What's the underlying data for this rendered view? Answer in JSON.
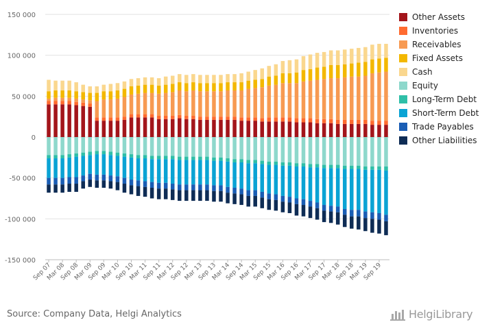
{
  "chart_data": {
    "type": "bar",
    "stacked": true,
    "ylim": [
      -150000,
      150000
    ],
    "yticks": [
      150000,
      100000,
      50000,
      0,
      -50000,
      -100000,
      -150000
    ],
    "ytick_labels": [
      "150 000",
      "100 000",
      "50 000",
      "0",
      "-50 000",
      "-100 000",
      "-150 000"
    ],
    "grid": true,
    "legend_position": "right",
    "categories": [
      "Sep 07",
      "Dec 07",
      "Mar 08",
      "Jun 08",
      "Sep 08",
      "Dec 08",
      "Mar 09",
      "Jun 09",
      "Sep 09",
      "Dec 09",
      "Mar 10",
      "Jun 10",
      "Sep 10",
      "Dec 10",
      "Mar 11",
      "Jun 11",
      "Sep 11",
      "Dec 11",
      "Mar 12",
      "Jun 12",
      "Sep 12",
      "Dec 12",
      "Mar 13",
      "Jun 13",
      "Sep 13",
      "Dec 13",
      "Mar 14",
      "Jun 14",
      "Sep 14",
      "Dec 14",
      "Mar 15",
      "Jun 15",
      "Sep 15",
      "Dec 15",
      "Mar 16",
      "Jun 16",
      "Sep 16",
      "Dec 16",
      "Mar 17",
      "Jun 17",
      "Sep 17",
      "Dec 17",
      "Mar 18",
      "Jun 18",
      "Sep 18",
      "Dec 18",
      "Mar 19",
      "Jun 19",
      "Sep 19",
      "Dec 19"
    ],
    "x_tick_labels": [
      "Sep 07",
      "Mar 08",
      "Sep 08",
      "Mar 09",
      "Sep 09",
      "Mar 10",
      "Sep 10",
      "Mar 11",
      "Sep 11",
      "Mar 12",
      "Sep 12",
      "Mar 13",
      "Sep 13",
      "Mar 14",
      "Sep 14",
      "Mar 15",
      "Sep 15",
      "Mar 16",
      "Sep 16",
      "Mar 17",
      "Sep 17",
      "Mar 18",
      "Sep 18",
      "Mar 19",
      "Sep 19"
    ],
    "series": [
      {
        "name": "Other Assets",
        "color": "#a3151b",
        "group": "assets",
        "values": [
          40000,
          40000,
          40000,
          40000,
          39000,
          38000,
          37000,
          20000,
          20000,
          20000,
          20000,
          21000,
          24000,
          24000,
          24000,
          24000,
          22000,
          22000,
          22000,
          23000,
          22000,
          22000,
          21000,
          21000,
          21000,
          21000,
          21000,
          21000,
          20000,
          20000,
          20000,
          19000,
          19000,
          19000,
          19000,
          19000,
          18000,
          18000,
          18000,
          17000,
          17000,
          17000,
          16000,
          16000,
          16000,
          16000,
          16000,
          15000,
          15000,
          15000
        ]
      },
      {
        "name": "Inventories",
        "color": "#ff6b30",
        "group": "assets",
        "values": [
          4000,
          4000,
          4000,
          4000,
          4000,
          4000,
          4000,
          4000,
          4000,
          4000,
          4000,
          4000,
          4000,
          4000,
          4000,
          4000,
          4000,
          4000,
          4000,
          4000,
          4000,
          4000,
          4000,
          4000,
          4000,
          4000,
          4000,
          4000,
          4000,
          4000,
          4000,
          4000,
          5000,
          5000,
          5000,
          5000,
          5000,
          5000,
          5000,
          5000,
          5000,
          5000,
          5000,
          5000,
          5000,
          5000,
          5000,
          5000,
          5000,
          5000
        ]
      },
      {
        "name": "Receivables",
        "color": "#f79a52",
        "group": "assets",
        "values": [
          3000,
          4000,
          4000,
          4000,
          4000,
          4000,
          4000,
          20000,
          22000,
          22000,
          23000,
          24000,
          24000,
          25000,
          26000,
          26000,
          27000,
          28000,
          29000,
          30000,
          30000,
          31000,
          31000,
          31000,
          31000,
          31000,
          32000,
          32000,
          33000,
          35000,
          36000,
          38000,
          39000,
          40000,
          42000,
          42000,
          43000,
          45000,
          46000,
          48000,
          49000,
          50000,
          51000,
          52000,
          53000,
          53000,
          54000,
          58000,
          59000,
          60000
        ]
      },
      {
        "name": "Fixed Assets",
        "color": "#f3b800",
        "group": "assets",
        "values": [
          9000,
          9000,
          9000,
          9000,
          9000,
          9000,
          9000,
          10000,
          10000,
          10000,
          10000,
          10000,
          10000,
          10000,
          10000,
          10000,
          10000,
          10000,
          10000,
          10000,
          10000,
          10000,
          10000,
          10000,
          10000,
          10000,
          10000,
          10000,
          10000,
          10000,
          10000,
          10000,
          11000,
          11000,
          12000,
          12000,
          13000,
          14000,
          14000,
          15000,
          15000,
          16000,
          16000,
          16000,
          16000,
          17000,
          17000,
          17000,
          17000,
          17000
        ]
      },
      {
        "name": "Cash",
        "color": "#fad78e",
        "group": "assets",
        "values": [
          14000,
          12000,
          12000,
          12000,
          11000,
          9000,
          8000,
          8000,
          8000,
          9000,
          9000,
          9000,
          9000,
          9000,
          9000,
          9000,
          9000,
          10000,
          10000,
          10000,
          10000,
          10000,
          10000,
          10000,
          10000,
          10000,
          10000,
          10000,
          11000,
          11000,
          12000,
          13000,
          13000,
          14000,
          15000,
          16000,
          16000,
          17000,
          18000,
          18000,
          18000,
          18000,
          18000,
          18000,
          18000,
          18000,
          18000,
          18000,
          18000,
          17000
        ]
      },
      {
        "name": "Equity",
        "color": "#8ed8cc",
        "group": "liabilities",
        "values": [
          -22000,
          -22000,
          -22000,
          -21000,
          -20000,
          -19000,
          -18000,
          -17000,
          -17000,
          -18000,
          -19000,
          -20000,
          -21000,
          -22000,
          -22000,
          -23000,
          -23000,
          -23000,
          -23000,
          -24000,
          -24000,
          -24000,
          -24000,
          -24000,
          -25000,
          -25000,
          -26000,
          -27000,
          -27000,
          -28000,
          -28000,
          -29000,
          -30000,
          -30000,
          -31000,
          -31000,
          -32000,
          -32000,
          -33000,
          -33000,
          -34000,
          -34000,
          -34000,
          -35000,
          -35000,
          -35000,
          -36000,
          -36000,
          -36000,
          -36000
        ]
      },
      {
        "name": "Long-Term Debt",
        "color": "#2fbfa8",
        "group": "liabilities",
        "values": [
          -4000,
          -4000,
          -4000,
          -4000,
          -4000,
          -4000,
          -4000,
          -4000,
          -4000,
          -4000,
          -4000,
          -4000,
          -4000,
          -4000,
          -4000,
          -4000,
          -4000,
          -4000,
          -4000,
          -4000,
          -4000,
          -4000,
          -4000,
          -4000,
          -4000,
          -4000,
          -4000,
          -4000,
          -4000,
          -4000,
          -4000,
          -4000,
          -4000,
          -4000,
          -4000,
          -4000,
          -4000,
          -4000,
          -4000,
          -4000,
          -4000,
          -4000,
          -4000,
          -4000,
          -4000,
          -4000,
          -4000,
          -4000,
          -4000,
          -5000
        ]
      },
      {
        "name": "Short-Term Debt",
        "color": "#0aa3d4",
        "group": "liabilities",
        "values": [
          -24000,
          -24000,
          -24000,
          -24000,
          -25000,
          -24000,
          -23000,
          -25000,
          -25000,
          -25000,
          -25000,
          -26000,
          -27000,
          -27000,
          -28000,
          -28000,
          -29000,
          -29000,
          -30000,
          -30000,
          -30000,
          -30000,
          -30000,
          -30000,
          -30000,
          -30000,
          -31000,
          -31000,
          -32000,
          -33000,
          -33000,
          -34000,
          -35000,
          -36000,
          -37000,
          -38000,
          -39000,
          -40000,
          -41000,
          -43000,
          -45000,
          -46000,
          -47000,
          -49000,
          -50000,
          -50000,
          -51000,
          -52000,
          -53000,
          -54000
        ]
      },
      {
        "name": "Trade Payables",
        "color": "#1a5db4",
        "group": "liabilities",
        "values": [
          -8000,
          -8000,
          -8000,
          -8000,
          -8000,
          -7000,
          -7000,
          -7000,
          -7000,
          -7000,
          -7000,
          -7000,
          -7000,
          -7000,
          -7000,
          -7000,
          -7000,
          -7000,
          -7000,
          -7000,
          -7000,
          -7000,
          -7000,
          -7000,
          -7000,
          -7000,
          -7000,
          -7000,
          -7000,
          -7000,
          -7000,
          -7000,
          -7000,
          -7000,
          -7000,
          -7000,
          -7000,
          -7000,
          -7000,
          -7000,
          -7000,
          -7000,
          -7000,
          -7000,
          -8000,
          -8000,
          -8000,
          -8000,
          -8000,
          -8000
        ]
      },
      {
        "name": "Other Liabilities",
        "color": "#0e2c55",
        "group": "liabilities",
        "values": [
          -10000,
          -10000,
          -10000,
          -10000,
          -10000,
          -9000,
          -9000,
          -9000,
          -9000,
          -9000,
          -10000,
          -11000,
          -11000,
          -12000,
          -12000,
          -13000,
          -13000,
          -13000,
          -13000,
          -13000,
          -13000,
          -13000,
          -13000,
          -13000,
          -13000,
          -13000,
          -13000,
          -13000,
          -13000,
          -13000,
          -13000,
          -13000,
          -13000,
          -13000,
          -13000,
          -13000,
          -14000,
          -14000,
          -14000,
          -14000,
          -14000,
          -14000,
          -15000,
          -15000,
          -15000,
          -16000,
          -16000,
          -17000,
          -17000,
          -17000
        ]
      }
    ]
  },
  "legend_order": [
    "Other Assets",
    "Inventories",
    "Receivables",
    "Fixed Assets",
    "Cash",
    "Equity",
    "Long-Term Debt",
    "Short-Term Debt",
    "Trade Payables",
    "Other Liabilities"
  ],
  "footer": {
    "source": "Source: Company Data, Helgi Analytics",
    "brand": "HelgiLibrary",
    "brand_icon": "helgi-logo-icon"
  }
}
